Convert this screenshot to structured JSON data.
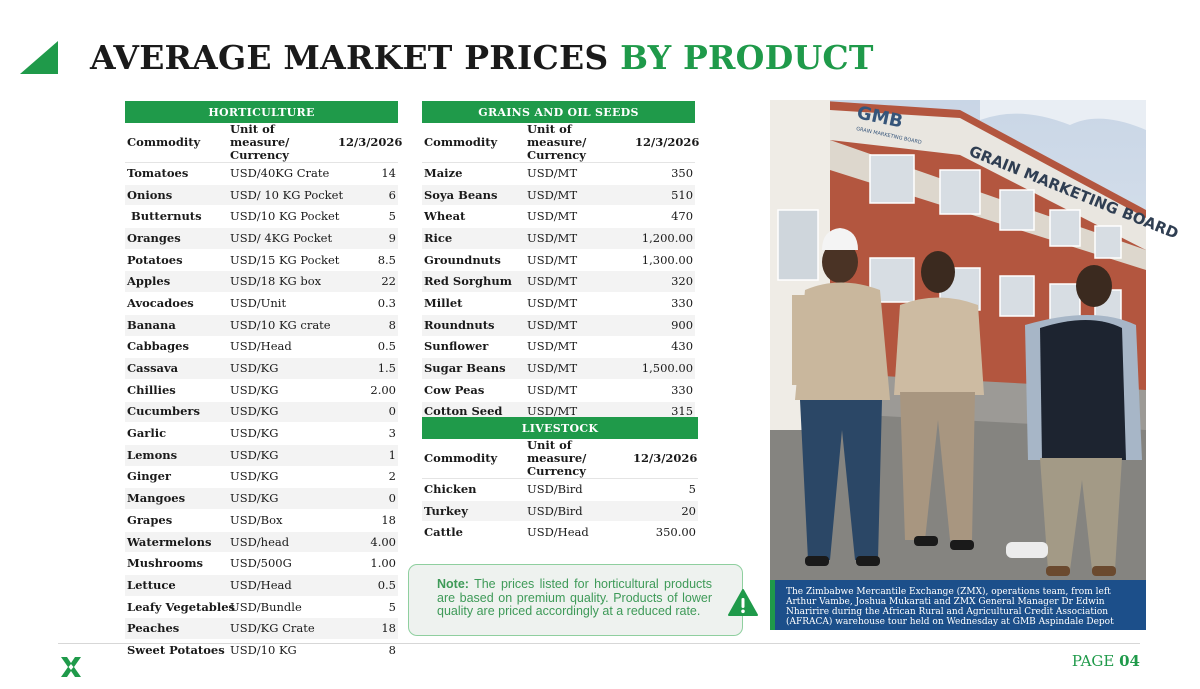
{
  "title": {
    "main": "AVERAGE MARKET PRICES",
    "accent": "BY PRODUCT"
  },
  "columns": {
    "commodity": "Commodity",
    "unit": "Unit of measure/ Currency",
    "date": "12/3/2026"
  },
  "horticulture": {
    "heading": "HORTICULTURE",
    "rows": [
      [
        "Tomatoes",
        "USD/40KG Crate",
        "14"
      ],
      [
        "Onions",
        "USD/ 10 KG Pocket",
        "6"
      ],
      [
        " Butternuts",
        "USD/10 KG Pocket",
        "5"
      ],
      [
        "Oranges",
        "USD/ 4KG Pocket",
        "9"
      ],
      [
        "Potatoes",
        "USD/15 KG Pocket",
        "8.5"
      ],
      [
        "Apples",
        "USD/18 KG box",
        "22"
      ],
      [
        "Avocadoes",
        "USD/Unit",
        "0.3"
      ],
      [
        "Banana",
        "USD/10 KG crate",
        "8"
      ],
      [
        "Cabbages",
        "USD/Head",
        "0.5"
      ],
      [
        "Cassava",
        "USD/KG",
        "1.5"
      ],
      [
        "Chillies",
        "USD/KG",
        "2.00"
      ],
      [
        "Cucumbers",
        "USD/KG",
        "0"
      ],
      [
        "Garlic",
        "USD/KG",
        "3"
      ],
      [
        "Lemons",
        "USD/KG",
        "1"
      ],
      [
        "Ginger",
        "USD/KG",
        "2"
      ],
      [
        "Mangoes",
        "USD/KG",
        "0"
      ],
      [
        "Grapes",
        "USD/Box",
        "18"
      ],
      [
        "Watermelons",
        "USD/head",
        "4.00"
      ],
      [
        "Mushrooms",
        "USD/500G",
        "1.00"
      ],
      [
        "Lettuce",
        "USD/Head",
        "0.5"
      ],
      [
        "Leafy Vegetables",
        "USD/Bundle",
        "5"
      ],
      [
        "Peaches",
        "USD/KG Crate",
        "18"
      ],
      [
        "Sweet Potatoes",
        "USD/10 KG",
        "8"
      ]
    ]
  },
  "grains": {
    "heading": "GRAINS AND OIL SEEDS",
    "rows": [
      [
        "Maize",
        "USD/MT",
        "350"
      ],
      [
        "Soya Beans",
        "USD/MT",
        "510"
      ],
      [
        "Wheat",
        "USD/MT",
        "470"
      ],
      [
        "Rice",
        "USD/MT",
        "1,200.00"
      ],
      [
        "Groundnuts",
        "USD/MT",
        "1,300.00"
      ],
      [
        "Red Sorghum",
        "USD/MT",
        "320"
      ],
      [
        "Millet",
        "USD/MT",
        "330"
      ],
      [
        "Roundnuts",
        "USD/MT",
        "900"
      ],
      [
        "Sunflower",
        "USD/MT",
        "430"
      ],
      [
        "Sugar Beans",
        "USD/MT",
        "1,500.00"
      ],
      [
        "Cow Peas",
        "USD/MT",
        "330"
      ],
      [
        "Cotton Seed",
        "USD/MT",
        "315"
      ]
    ]
  },
  "livestock": {
    "heading": "LIVESTOCK",
    "rows": [
      [
        "Chicken",
        "USD/Bird",
        "5"
      ],
      [
        "Turkey",
        "USD/Bird",
        "20"
      ],
      [
        "Cattle",
        "USD/Head",
        "350.00"
      ]
    ]
  },
  "note": {
    "label": "Note:",
    "text": "The prices listed for horticultural products are based on premium quality. Products of lower quality are priced accordingly at a reduced rate."
  },
  "photo": {
    "sign_gmb": "GMB",
    "sign_small": "GRAIN MARKETING BOARD",
    "sign_board": "GRAIN MARKETING BOARD",
    "caption": "The Zimbabwe Mercantile Exchange (ZMX), operations team, from left Arthur Vambe, Joshua Mukarati and ZMX General Manager Dr Edwin Nharirire during the African Rural and Agricultural Credit Association (AFRACA) warehouse tour held on Wednesday at GMB Aspindale Depot"
  },
  "footer": {
    "page_label": "PAGE",
    "page_number": "04",
    "logo_icon": "zmx-logo-icon"
  },
  "colors": {
    "accent": "#1f9a4a",
    "caption_bg": "#1c4f8a",
    "note_text": "#3e9a58"
  }
}
